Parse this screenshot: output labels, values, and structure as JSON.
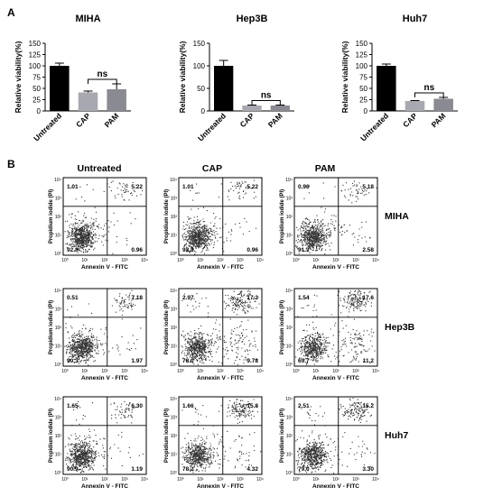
{
  "panels": {
    "a": "A",
    "b": "B"
  },
  "chart_data": [
    {
      "type": "bar",
      "title": "MIHA",
      "ylabel": "Relative viability(%)",
      "ylim": [
        0,
        150
      ],
      "yticks": [
        0,
        25,
        50,
        75,
        100,
        125,
        150
      ],
      "categories": [
        "Untreated",
        "CAP",
        "PAM"
      ],
      "values": [
        100,
        41,
        48
      ],
      "errors": [
        6,
        3,
        12
      ],
      "colors": [
        "#000000",
        "#a8a8b0",
        "#8a8a92"
      ],
      "annotation": "ns"
    },
    {
      "type": "bar",
      "title": "Hep3B",
      "ylabel": "Relative viability(%)",
      "ylim": [
        0,
        150
      ],
      "yticks": [
        0,
        50,
        100,
        150
      ],
      "categories": [
        "Untreated",
        "CAP",
        "PAM"
      ],
      "values": [
        100,
        12,
        12
      ],
      "errors": [
        12,
        1,
        1
      ],
      "colors": [
        "#000000",
        "#a8a8b0",
        "#8a8a92"
      ],
      "annotation": "ns"
    },
    {
      "type": "bar",
      "title": "Huh7",
      "ylabel": "Relative viability(%)",
      "ylim": [
        0,
        150
      ],
      "yticks": [
        0,
        25,
        50,
        75,
        100,
        125,
        150
      ],
      "categories": [
        "Untreated",
        "CAP",
        "PAM"
      ],
      "values": [
        100,
        22,
        27
      ],
      "errors": [
        4,
        1,
        3
      ],
      "colors": [
        "#000000",
        "#a8a8b0",
        "#8a8a92"
      ],
      "annotation": "ns"
    }
  ],
  "flow": {
    "columns": [
      "Untreated",
      "CAP",
      "PAM"
    ],
    "rows": [
      "MIHA",
      "Hep3B",
      "Huh7"
    ],
    "xlabel": "Annexin V - FITC",
    "ylabel": "Propidium iodide (PI)",
    "tick_labels": [
      "10⁰",
      "10¹",
      "10²",
      "10³",
      "10⁴"
    ],
    "quadrants": [
      [
        {
          "ul": "1.01",
          "ur": "5.22",
          "ll": "92.8",
          "lr": "0.96"
        },
        {
          "ul": "1.01",
          "ur": "5.22",
          "ll": "92.8",
          "lr": "0.96"
        },
        {
          "ul": "0.96",
          "ur": "5.18",
          "ll": "91.3",
          "lr": "2.58"
        }
      ],
      [
        {
          "ul": "0.51",
          "ur": "7.18",
          "ll": "90.3",
          "lr": "1.97"
        },
        {
          "ul": "2.97",
          "ur": "17.2",
          "ll": "78.0",
          "lr": "9.78"
        },
        {
          "ul": "1.54",
          "ur": "17.6",
          "ll": "69.7",
          "lr": "11.2"
        }
      ],
      [
        {
          "ul": "1.65",
          "ur": "6.30",
          "ll": "90.9",
          "lr": "1.19"
        },
        {
          "ul": "1.66",
          "ur": "15.8",
          "ll": "78.2",
          "lr": "4.32"
        },
        {
          "ul": "2.51",
          "ur": "15.2",
          "ll": "79.0",
          "lr": "3.30"
        }
      ]
    ]
  }
}
